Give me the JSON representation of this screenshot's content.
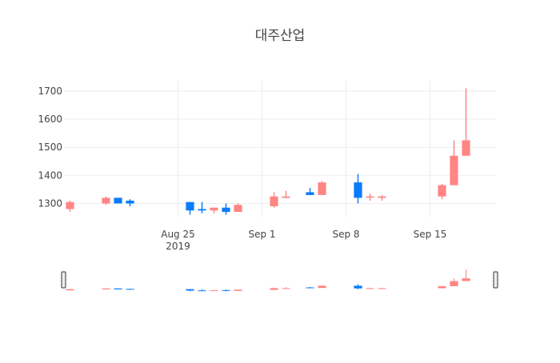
{
  "chart_data": {
    "type": "candlestick",
    "title": "대주산업",
    "xlabel": "",
    "ylabel": "",
    "ylim": [
      1250,
      1740
    ],
    "y_ticks": [
      1300,
      1400,
      1500,
      1600,
      1700
    ],
    "x_range": [
      "2019-08-16",
      "2019-09-20"
    ],
    "x_ticks": [
      {
        "date": "2019-08-25",
        "label": "Aug 25",
        "sublabel": "2019"
      },
      {
        "date": "2019-09-01",
        "label": "Sep 1",
        "sublabel": ""
      },
      {
        "date": "2019-09-08",
        "label": "Sep 8",
        "sublabel": ""
      },
      {
        "date": "2019-09-15",
        "label": "Sep 15",
        "sublabel": ""
      }
    ],
    "grid": true,
    "increasing_color": "#ff8585",
    "decreasing_color": "#0a7cf9",
    "rangeslider": true,
    "candles": [
      {
        "date": "2019-08-16",
        "open": 1280,
        "high": 1310,
        "low": 1270,
        "close": 1305
      },
      {
        "date": "2019-08-19",
        "open": 1300,
        "high": 1325,
        "low": 1295,
        "close": 1320
      },
      {
        "date": "2019-08-20",
        "open": 1320,
        "high": 1320,
        "low": 1300,
        "close": 1300
      },
      {
        "date": "2019-08-21",
        "open": 1310,
        "high": 1315,
        "low": 1290,
        "close": 1300
      },
      {
        "date": "2019-08-26",
        "open": 1305,
        "high": 1305,
        "low": 1260,
        "close": 1275
      },
      {
        "date": "2019-08-27",
        "open": 1280,
        "high": 1305,
        "low": 1265,
        "close": 1275
      },
      {
        "date": "2019-08-28",
        "open": 1275,
        "high": 1285,
        "low": 1265,
        "close": 1285
      },
      {
        "date": "2019-08-29",
        "open": 1285,
        "high": 1300,
        "low": 1260,
        "close": 1270
      },
      {
        "date": "2019-08-30",
        "open": 1270,
        "high": 1300,
        "low": 1270,
        "close": 1295
      },
      {
        "date": "2019-09-02",
        "open": 1290,
        "high": 1340,
        "low": 1285,
        "close": 1325
      },
      {
        "date": "2019-09-03",
        "open": 1320,
        "high": 1345,
        "low": 1318,
        "close": 1325
      },
      {
        "date": "2019-09-05",
        "open": 1340,
        "high": 1355,
        "low": 1330,
        "close": 1330
      },
      {
        "date": "2019-09-06",
        "open": 1330,
        "high": 1380,
        "low": 1330,
        "close": 1375
      },
      {
        "date": "2019-09-09",
        "open": 1375,
        "high": 1405,
        "low": 1300,
        "close": 1320
      },
      {
        "date": "2019-09-10",
        "open": 1325,
        "high": 1335,
        "low": 1310,
        "close": 1325
      },
      {
        "date": "2019-09-11",
        "open": 1320,
        "high": 1330,
        "low": 1310,
        "close": 1325
      },
      {
        "date": "2019-09-16",
        "open": 1325,
        "high": 1370,
        "low": 1315,
        "close": 1365
      },
      {
        "date": "2019-09-17",
        "open": 1365,
        "high": 1525,
        "low": 1365,
        "close": 1470
      },
      {
        "date": "2019-09-18",
        "open": 1470,
        "high": 1710,
        "low": 1470,
        "close": 1525
      }
    ]
  }
}
